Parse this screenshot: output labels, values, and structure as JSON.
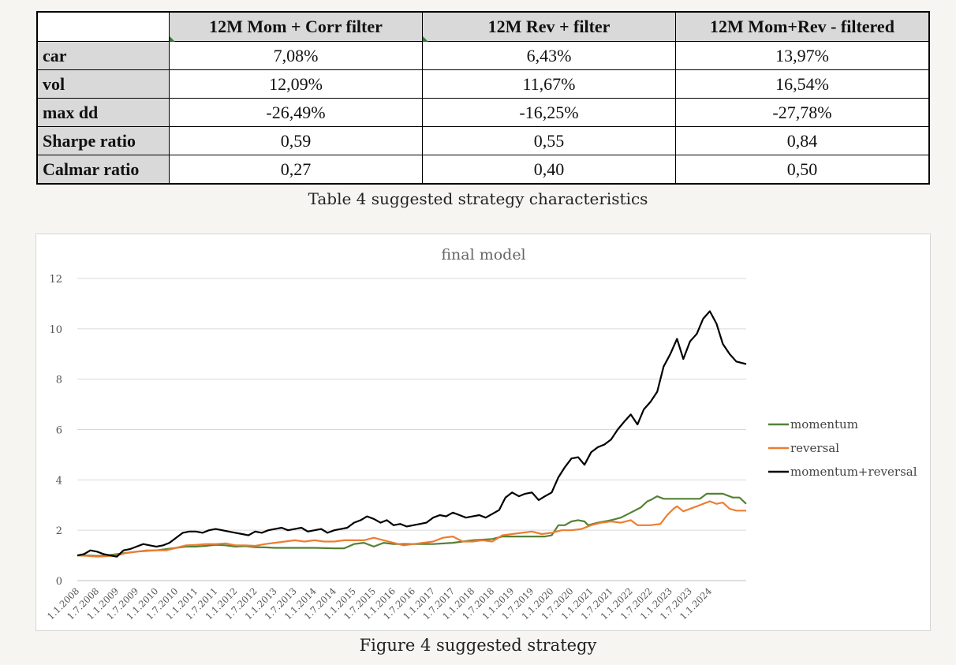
{
  "table": {
    "columns": [
      "",
      "12M Mom + Corr filter",
      "12M Rev + filter",
      "12M Mom+Rev  - filtered"
    ],
    "rows": [
      {
        "label": "car",
        "values": [
          "7,08%",
          "6,43%",
          "13,97%"
        ]
      },
      {
        "label": "vol",
        "values": [
          "12,09%",
          "11,67%",
          "16,54%"
        ]
      },
      {
        "label": "max dd",
        "values": [
          "-26,49%",
          "-16,25%",
          "-27,78%"
        ]
      },
      {
        "label": "Sharpe ratio",
        "values": [
          "0,59",
          "0,55",
          "0,84"
        ]
      },
      {
        "label": "Calmar ratio",
        "values": [
          "0,27",
          "0,40",
          "0,50"
        ]
      }
    ],
    "caption": "Table 4 suggested strategy characteristics"
  },
  "figure": {
    "caption": "Figure 4 suggested strategy"
  },
  "chart_data": {
    "type": "line",
    "title": "final model",
    "xlabel": "",
    "ylabel": "",
    "ylim": [
      0,
      12
    ],
    "yticks": [
      0,
      2,
      4,
      6,
      8,
      10,
      12
    ],
    "grid": true,
    "legend_position": "right",
    "x_tick_labels": [
      "1.1.2008",
      "1.7.2008",
      "1.1.2009",
      "1.7.2009",
      "1.1.2010",
      "1.7.2010",
      "1.1.2011",
      "1.7.2011",
      "1.1.2012",
      "1.7.2012",
      "1.1.2013",
      "1.7.2013",
      "1.1.2014",
      "1.7.2014",
      "1.1.2015",
      "1.7.2015",
      "1.1.2016",
      "1.7.2016",
      "1.1.2017",
      "1.7.2017",
      "1.1.2018",
      "1.7.2018",
      "1.1.2019",
      "1.7.2019",
      "1.1.2020",
      "1.7.2020",
      "1.1.2021",
      "1.7.2021",
      "1.1.2022",
      "1.7.2022",
      "1.1.2023",
      "1.7.2023",
      "1.1.2024"
    ],
    "x_range": [
      2008.0,
      2024.92
    ],
    "series": [
      {
        "name": "momentum",
        "color": "#538135",
        "points": [
          [
            2008.0,
            1.0
          ],
          [
            2008.25,
            1.0
          ],
          [
            2008.5,
            0.98
          ],
          [
            2008.75,
            1.0
          ],
          [
            2009.0,
            1.05
          ],
          [
            2009.25,
            1.1
          ],
          [
            2009.5,
            1.15
          ],
          [
            2009.75,
            1.18
          ],
          [
            2010.0,
            1.2
          ],
          [
            2010.25,
            1.25
          ],
          [
            2010.5,
            1.3
          ],
          [
            2010.75,
            1.35
          ],
          [
            2011.0,
            1.35
          ],
          [
            2011.25,
            1.38
          ],
          [
            2011.5,
            1.42
          ],
          [
            2011.75,
            1.4
          ],
          [
            2012.0,
            1.35
          ],
          [
            2012.25,
            1.37
          ],
          [
            2012.5,
            1.33
          ],
          [
            2012.75,
            1.32
          ],
          [
            2013.0,
            1.3
          ],
          [
            2013.5,
            1.3
          ],
          [
            2014.0,
            1.3
          ],
          [
            2014.5,
            1.28
          ],
          [
            2014.75,
            1.28
          ],
          [
            2015.0,
            1.45
          ],
          [
            2015.25,
            1.5
          ],
          [
            2015.5,
            1.35
          ],
          [
            2015.75,
            1.5
          ],
          [
            2016.0,
            1.45
          ],
          [
            2016.25,
            1.45
          ],
          [
            2016.5,
            1.45
          ],
          [
            2017.0,
            1.45
          ],
          [
            2017.5,
            1.5
          ],
          [
            2017.75,
            1.55
          ],
          [
            2018.0,
            1.6
          ],
          [
            2018.5,
            1.65
          ],
          [
            2018.75,
            1.75
          ],
          [
            2019.0,
            1.75
          ],
          [
            2019.5,
            1.75
          ],
          [
            2019.83,
            1.75
          ],
          [
            2020.0,
            1.8
          ],
          [
            2020.17,
            2.2
          ],
          [
            2020.33,
            2.2
          ],
          [
            2020.5,
            2.35
          ],
          [
            2020.67,
            2.4
          ],
          [
            2020.83,
            2.35
          ],
          [
            2020.92,
            2.2
          ],
          [
            2021.17,
            2.3
          ],
          [
            2021.5,
            2.4
          ],
          [
            2021.75,
            2.5
          ],
          [
            2022.0,
            2.7
          ],
          [
            2022.25,
            2.9
          ],
          [
            2022.42,
            3.15
          ],
          [
            2022.5,
            3.2
          ],
          [
            2022.67,
            3.35
          ],
          [
            2022.83,
            3.25
          ],
          [
            2023.0,
            3.25
          ],
          [
            2023.5,
            3.25
          ],
          [
            2023.75,
            3.25
          ],
          [
            2023.92,
            3.45
          ],
          [
            2024.33,
            3.45
          ],
          [
            2024.58,
            3.3
          ],
          [
            2024.75,
            3.3
          ],
          [
            2024.92,
            3.05
          ]
        ]
      },
      {
        "name": "reversal",
        "color": "#ed7d31",
        "points": [
          [
            2008.0,
            1.0
          ],
          [
            2008.25,
            0.98
          ],
          [
            2008.5,
            0.95
          ],
          [
            2008.75,
            0.97
          ],
          [
            2009.0,
            1.0
          ],
          [
            2009.25,
            1.1
          ],
          [
            2009.5,
            1.15
          ],
          [
            2009.75,
            1.2
          ],
          [
            2010.0,
            1.2
          ],
          [
            2010.25,
            1.2
          ],
          [
            2010.5,
            1.3
          ],
          [
            2010.75,
            1.4
          ],
          [
            2011.0,
            1.42
          ],
          [
            2011.25,
            1.45
          ],
          [
            2011.5,
            1.45
          ],
          [
            2011.75,
            1.48
          ],
          [
            2012.0,
            1.4
          ],
          [
            2012.25,
            1.4
          ],
          [
            2012.5,
            1.38
          ],
          [
            2012.75,
            1.45
          ],
          [
            2013.0,
            1.5
          ],
          [
            2013.25,
            1.55
          ],
          [
            2013.5,
            1.6
          ],
          [
            2013.75,
            1.55
          ],
          [
            2014.0,
            1.6
          ],
          [
            2014.25,
            1.55
          ],
          [
            2014.5,
            1.55
          ],
          [
            2014.75,
            1.6
          ],
          [
            2015.0,
            1.6
          ],
          [
            2015.25,
            1.6
          ],
          [
            2015.5,
            1.7
          ],
          [
            2015.75,
            1.6
          ],
          [
            2016.0,
            1.5
          ],
          [
            2016.25,
            1.4
          ],
          [
            2016.5,
            1.45
          ],
          [
            2016.75,
            1.5
          ],
          [
            2017.0,
            1.55
          ],
          [
            2017.25,
            1.7
          ],
          [
            2017.5,
            1.75
          ],
          [
            2017.75,
            1.55
          ],
          [
            2018.0,
            1.55
          ],
          [
            2018.25,
            1.6
          ],
          [
            2018.5,
            1.55
          ],
          [
            2018.75,
            1.8
          ],
          [
            2019.0,
            1.85
          ],
          [
            2019.25,
            1.9
          ],
          [
            2019.5,
            1.95
          ],
          [
            2019.75,
            1.85
          ],
          [
            2020.0,
            1.9
          ],
          [
            2020.25,
            2.0
          ],
          [
            2020.5,
            2.0
          ],
          [
            2020.75,
            2.05
          ],
          [
            2021.0,
            2.2
          ],
          [
            2021.25,
            2.3
          ],
          [
            2021.5,
            2.35
          ],
          [
            2021.75,
            2.3
          ],
          [
            2022.0,
            2.4
          ],
          [
            2022.17,
            2.2
          ],
          [
            2022.5,
            2.2
          ],
          [
            2022.75,
            2.25
          ],
          [
            2022.92,
            2.6
          ],
          [
            2023.08,
            2.85
          ],
          [
            2023.17,
            2.95
          ],
          [
            2023.33,
            2.75
          ],
          [
            2023.5,
            2.85
          ],
          [
            2023.67,
            2.95
          ],
          [
            2023.83,
            3.05
          ],
          [
            2024.0,
            3.15
          ],
          [
            2024.17,
            3.05
          ],
          [
            2024.33,
            3.1
          ],
          [
            2024.5,
            2.85
          ],
          [
            2024.67,
            2.78
          ],
          [
            2024.92,
            2.78
          ]
        ]
      },
      {
        "name": "momentum+reversal",
        "color": "#000000",
        "points": [
          [
            2008.0,
            1.0
          ],
          [
            2008.17,
            1.05
          ],
          [
            2008.33,
            1.2
          ],
          [
            2008.5,
            1.15
          ],
          [
            2008.67,
            1.05
          ],
          [
            2008.83,
            1.0
          ],
          [
            2009.0,
            0.95
          ],
          [
            2009.17,
            1.2
          ],
          [
            2009.33,
            1.25
          ],
          [
            2009.5,
            1.35
          ],
          [
            2009.67,
            1.45
          ],
          [
            2009.83,
            1.4
          ],
          [
            2010.0,
            1.35
          ],
          [
            2010.17,
            1.4
          ],
          [
            2010.33,
            1.5
          ],
          [
            2010.5,
            1.7
          ],
          [
            2010.67,
            1.9
          ],
          [
            2010.83,
            1.95
          ],
          [
            2011.0,
            1.95
          ],
          [
            2011.17,
            1.9
          ],
          [
            2011.33,
            2.0
          ],
          [
            2011.5,
            2.05
          ],
          [
            2011.67,
            2.0
          ],
          [
            2011.83,
            1.95
          ],
          [
            2012.0,
            1.9
          ],
          [
            2012.17,
            1.85
          ],
          [
            2012.33,
            1.8
          ],
          [
            2012.5,
            1.95
          ],
          [
            2012.67,
            1.9
          ],
          [
            2012.83,
            2.0
          ],
          [
            2013.0,
            2.05
          ],
          [
            2013.17,
            2.1
          ],
          [
            2013.33,
            2.0
          ],
          [
            2013.5,
            2.05
          ],
          [
            2013.67,
            2.1
          ],
          [
            2013.83,
            1.95
          ],
          [
            2014.0,
            2.0
          ],
          [
            2014.17,
            2.05
          ],
          [
            2014.33,
            1.9
          ],
          [
            2014.5,
            2.0
          ],
          [
            2014.67,
            2.05
          ],
          [
            2014.83,
            2.1
          ],
          [
            2015.0,
            2.3
          ],
          [
            2015.17,
            2.4
          ],
          [
            2015.33,
            2.55
          ],
          [
            2015.5,
            2.45
          ],
          [
            2015.67,
            2.3
          ],
          [
            2015.83,
            2.4
          ],
          [
            2016.0,
            2.2
          ],
          [
            2016.17,
            2.25
          ],
          [
            2016.33,
            2.15
          ],
          [
            2016.5,
            2.2
          ],
          [
            2016.67,
            2.25
          ],
          [
            2016.83,
            2.3
          ],
          [
            2017.0,
            2.5
          ],
          [
            2017.17,
            2.6
          ],
          [
            2017.33,
            2.55
          ],
          [
            2017.5,
            2.7
          ],
          [
            2017.67,
            2.6
          ],
          [
            2017.83,
            2.5
          ],
          [
            2018.0,
            2.55
          ],
          [
            2018.17,
            2.6
          ],
          [
            2018.33,
            2.5
          ],
          [
            2018.5,
            2.65
          ],
          [
            2018.67,
            2.8
          ],
          [
            2018.83,
            3.3
          ],
          [
            2019.0,
            3.5
          ],
          [
            2019.17,
            3.35
          ],
          [
            2019.33,
            3.45
          ],
          [
            2019.5,
            3.5
          ],
          [
            2019.67,
            3.2
          ],
          [
            2019.83,
            3.35
          ],
          [
            2020.0,
            3.5
          ],
          [
            2020.17,
            4.1
          ],
          [
            2020.33,
            4.5
          ],
          [
            2020.5,
            4.85
          ],
          [
            2020.67,
            4.9
          ],
          [
            2020.83,
            4.6
          ],
          [
            2021.0,
            5.1
          ],
          [
            2021.17,
            5.3
          ],
          [
            2021.33,
            5.4
          ],
          [
            2021.5,
            5.6
          ],
          [
            2021.67,
            6.0
          ],
          [
            2021.83,
            6.3
          ],
          [
            2022.0,
            6.6
          ],
          [
            2022.17,
            6.2
          ],
          [
            2022.33,
            6.8
          ],
          [
            2022.5,
            7.1
          ],
          [
            2022.67,
            7.5
          ],
          [
            2022.83,
            8.5
          ],
          [
            2023.0,
            9.0
          ],
          [
            2023.17,
            9.6
          ],
          [
            2023.33,
            8.8
          ],
          [
            2023.5,
            9.5
          ],
          [
            2023.67,
            9.8
          ],
          [
            2023.83,
            10.4
          ],
          [
            2024.0,
            10.7
          ],
          [
            2024.17,
            10.2
          ],
          [
            2024.33,
            9.4
          ],
          [
            2024.5,
            9.0
          ],
          [
            2024.67,
            8.7
          ],
          [
            2024.92,
            8.6
          ]
        ]
      }
    ]
  }
}
